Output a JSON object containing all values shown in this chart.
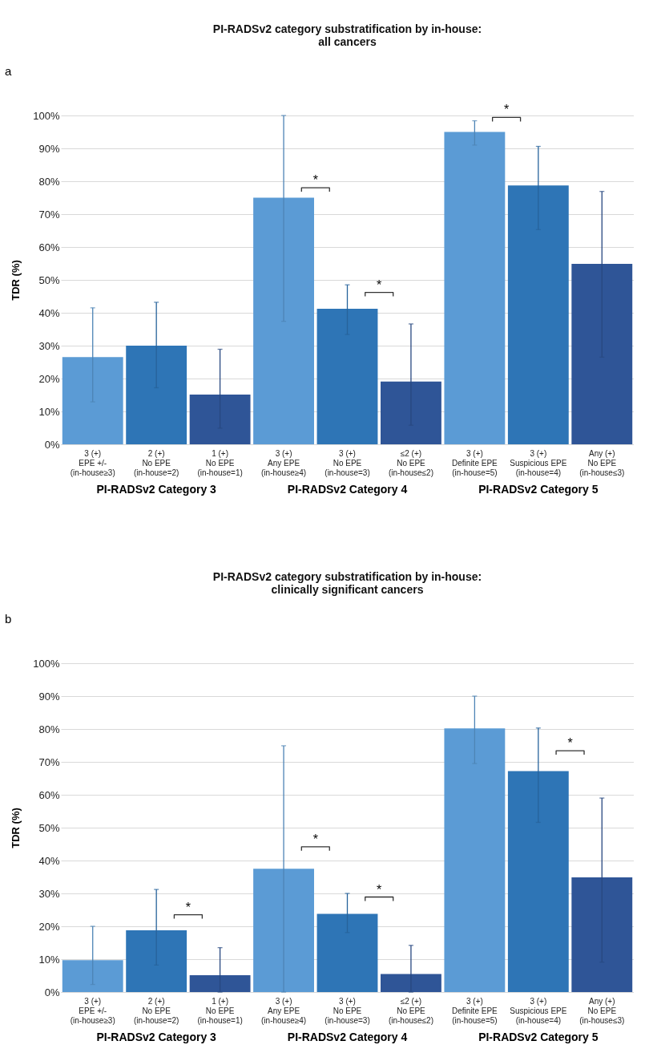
{
  "chart_data": [
    {
      "type": "bar",
      "title": "PI-RADSv2 category substratification by in-house:\nall cancers",
      "ylabel": "TDR (%)",
      "categories": [
        "3 (+)\nEPE +/-\n(in-house≥3)",
        "2 (+)\nNo EPE\n(in-house=2)",
        "1 (+)\nNo EPE\n(in-house=1)",
        "3 (+)\nAny EPE\n(in-house≥4)",
        "3 (+)\nNo EPE\n(in-house=3)",
        "≤2 (+)\nNo EPE\n(in-house≤2)",
        "3 (+)\nDefinite EPE\n(in-house=5)",
        "3 (+)\nSuspicious EPE\n(in-house=4)",
        "Any (+)\nNo EPE\n(in-house≤3)"
      ],
      "values": [
        26.5,
        30,
        15.1,
        75,
        41.2,
        19.1,
        95,
        78.7,
        54.9
      ],
      "colors": [
        "#5b9bd5",
        "#2e75b6",
        "#2f5597",
        "#5b9bd5",
        "#2e75b6",
        "#2f5597",
        "#5b9bd5",
        "#2e75b6",
        "#2f5597"
      ],
      "errors": [
        [
          12.9,
          41.5
        ],
        [
          17.2,
          43.2
        ],
        [
          4.9,
          28.9
        ],
        [
          37.4,
          100
        ],
        [
          33.4,
          48.5
        ],
        [
          5.8,
          36.6
        ],
        [
          91,
          98.4
        ],
        [
          65.3,
          90.6
        ],
        [
          26.5,
          76.9
        ]
      ],
      "ylim": [
        0,
        100
      ],
      "yticks": [
        {
          "value": 0,
          "label": "0%"
        },
        {
          "value": 10,
          "label": "10%"
        },
        {
          "value": 20,
          "label": "20%"
        },
        {
          "value": 30,
          "label": "30%"
        },
        {
          "value": 40,
          "label": "40%"
        },
        {
          "value": 50,
          "label": "50%"
        },
        {
          "value": 60,
          "label": "60%"
        },
        {
          "value": 70,
          "label": "70%"
        },
        {
          "value": 80,
          "label": "80%"
        },
        {
          "value": 90,
          "label": "90%"
        },
        {
          "value": 100,
          "label": "100%"
        }
      ],
      "grid": "y",
      "annotations": [
        "a",
        "PI-RADSv2 Category 3",
        "PI-RADSv2 Category 4",
        "PI-RADSv2 Category 5",
        {
          "text": "*",
          "x": "3 (+)\nAny EPE\n(in-house≥4)",
          "y": 78
        },
        {
          "text": "*",
          "x": "3 (+)\nNo EPE\n(in-house=3)",
          "y": 46.2
        },
        {
          "text": "*",
          "x": "3 (+)\nDefinite EPE\n(in-house=5)",
          "y": 99.4
        }
      ]
    },
    {
      "type": "bar",
      "title": "PI-RADSv2 category substratification by in-house:\nclinically significant cancers",
      "ylabel": "TDR (%)",
      "categories": [
        "3 (+)\nEPE +/-\n(in-house≥3)",
        "2 (+)\nNo EPE\n(in-house=2)",
        "1 (+)\nNo EPE\n(in-house=1)",
        "3 (+)\nAny EPE\n(in-house≥4)",
        "3 (+)\nNo EPE\n(in-house=3)",
        "≤2 (+)\nNo EPE\n(in-house≤2)",
        "3 (+)\nDefinite EPE\n(in-house=5)",
        "3 (+)\nSuspicious EPE\n(in-house=4)",
        "Any (+)\nNo EPE\n(in-house≤3)"
      ],
      "values": [
        9.7,
        18.8,
        5.1,
        37.5,
        23.8,
        5.5,
        80.2,
        67.2,
        34.9
      ],
      "colors": [
        "#5b9bd5",
        "#2e75b6",
        "#2f5597",
        "#5b9bd5",
        "#2e75b6",
        "#2f5597",
        "#5b9bd5",
        "#2e75b6",
        "#2f5597"
      ],
      "errors": [
        [
          2.3,
          20
        ],
        [
          8.2,
          31.2
        ],
        [
          0,
          13.5
        ],
        [
          0,
          74.9
        ],
        [
          18.1,
          30
        ],
        [
          0,
          14.2
        ],
        [
          69.5,
          90
        ],
        [
          51.6,
          80.3
        ],
        [
          9.1,
          59
        ]
      ],
      "ylim": [
        0,
        100
      ],
      "yticks": [
        {
          "value": 0,
          "label": "0%"
        },
        {
          "value": 10,
          "label": "10%"
        },
        {
          "value": 20,
          "label": "20%"
        },
        {
          "value": 30,
          "label": "30%"
        },
        {
          "value": 40,
          "label": "40%"
        },
        {
          "value": 50,
          "label": "50%"
        },
        {
          "value": 60,
          "label": "60%"
        },
        {
          "value": 70,
          "label": "70%"
        },
        {
          "value": 80,
          "label": "80%"
        },
        {
          "value": 90,
          "label": "90%"
        },
        {
          "value": 100,
          "label": "100%"
        }
      ],
      "grid": "y",
      "annotations": [
        "b",
        "PI-RADSv2 Category 3",
        "PI-RADSv2 Category 4",
        "PI-RADSv2 Category 5",
        {
          "text": "*",
          "x": "2 (+)\nNo EPE\n(in-house=2)",
          "y": 23.5
        },
        {
          "text": "*",
          "x": "3 (+)\nAny EPE\n(in-house≥4)",
          "y": 44.2
        },
        {
          "text": "*",
          "x": "3 (+)\nNo EPE\n(in-house=3)",
          "y": 28.9
        },
        {
          "text": "*",
          "x": "3 (+)\nSuspicious EPE\n(in-house=4)",
          "y": 73.4
        }
      ]
    }
  ]
}
